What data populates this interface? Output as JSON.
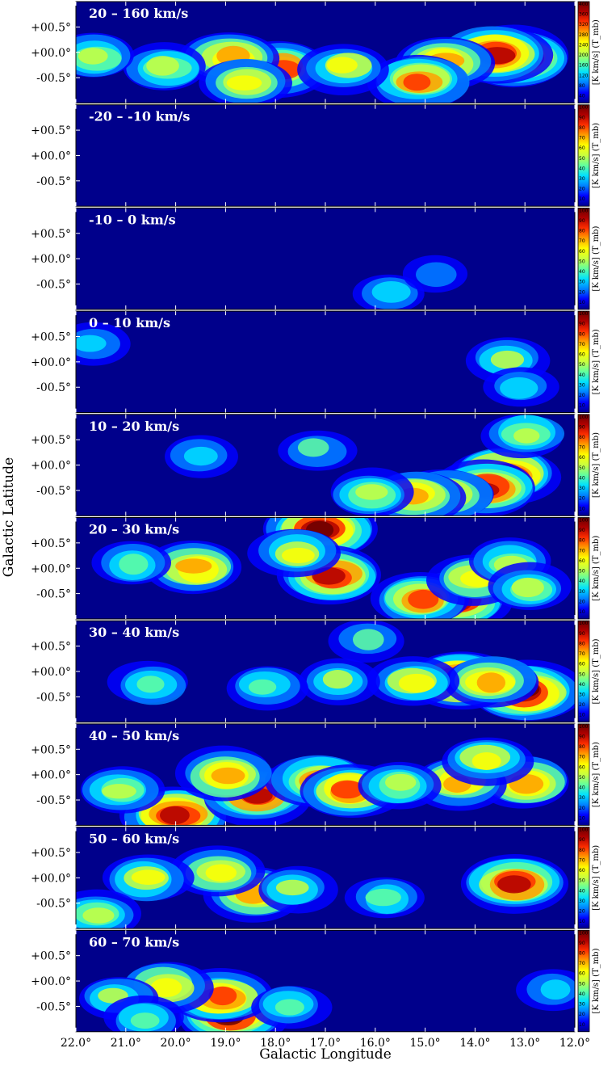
{
  "figure": {
    "ylabel": "Galactic Latitude",
    "xlabel": "Galactic Longitude",
    "colorbar_label": "[K km/s] (T_mb)",
    "colormap": [
      "#00008b",
      "#0000ff",
      "#0080ff",
      "#00e0ff",
      "#60ffa0",
      "#c8ff40",
      "#ffff00",
      "#ffa000",
      "#ff3000",
      "#b00000",
      "#6a0000"
    ],
    "background_color": "#00008b"
  },
  "chart_data": {
    "type": "heatmap",
    "x_ticks": [
      "22.0°",
      "21.0°",
      "20.0°",
      "19.0°",
      "18.0°",
      "17.0°",
      "16.0°",
      "15.0°",
      "14.0°",
      "13.0°",
      "12.0°"
    ],
    "x_tick_values": [
      22,
      21,
      20,
      19,
      18,
      17,
      16,
      15,
      14,
      13,
      12
    ],
    "xlim": [
      22.0,
      12.0
    ],
    "y_ticks": [
      "+00.5°",
      "+00.0°",
      "-00.5°"
    ],
    "y_tick_values": [
      0.5,
      0.0,
      -0.5
    ],
    "ylim": [
      -1.0,
      1.0
    ],
    "panels": [
      {
        "label": "20 – 160 km/s",
        "cbar_ticks": [
          "400",
          "360",
          "320",
          "280",
          "240",
          "200",
          "160",
          "120",
          "80",
          "40"
        ],
        "cbar_range": [
          0,
          400
        ],
        "clumps": [
          [
            13.2,
            -0.1,
            0.95
          ],
          [
            13.6,
            -0.05,
            0.9
          ],
          [
            14.6,
            -0.2,
            0.7
          ],
          [
            15.1,
            -0.55,
            0.75
          ],
          [
            17.9,
            -0.3,
            0.75
          ],
          [
            18.9,
            -0.1,
            0.7
          ],
          [
            18.6,
            -0.6,
            0.6
          ],
          [
            20.2,
            -0.3,
            0.5
          ],
          [
            21.6,
            -0.1,
            0.5
          ],
          [
            16.6,
            -0.3,
            0.55
          ]
        ]
      },
      {
        "label": "-20 – -10 km/s",
        "cbar_ticks": [
          "100",
          "90",
          "80",
          "70",
          "60",
          "50",
          "40",
          "30",
          "20",
          "10"
        ],
        "cbar_range": [
          0,
          100
        ],
        "clumps": []
      },
      {
        "label": "-10 – 0 km/s",
        "cbar_ticks": [
          "100",
          "90",
          "80",
          "70",
          "60",
          "50",
          "40",
          "30",
          "20",
          "10"
        ],
        "cbar_range": [
          0,
          100
        ],
        "clumps": [
          [
            15.7,
            -0.65,
            0.3
          ],
          [
            14.8,
            -0.3,
            0.2
          ]
        ]
      },
      {
        "label": "0 – 10 km/s",
        "cbar_ticks": [
          "100",
          "90",
          "80",
          "70",
          "60",
          "50",
          "40",
          "30",
          "20",
          "10"
        ],
        "cbar_range": [
          0,
          100
        ],
        "clumps": [
          [
            21.7,
            0.4,
            0.3
          ],
          [
            13.4,
            0.05,
            0.45
          ],
          [
            13.1,
            -0.5,
            0.3
          ]
        ]
      },
      {
        "label": "10 – 20 km/s",
        "cbar_ticks": [
          "100",
          "90",
          "80",
          "70",
          "60",
          "50",
          "40",
          "30",
          "20",
          "10"
        ],
        "cbar_range": [
          0,
          100
        ],
        "clumps": [
          [
            13.4,
            -0.2,
            0.9
          ],
          [
            13.8,
            -0.45,
            0.85
          ],
          [
            14.6,
            -0.6,
            0.7
          ],
          [
            15.2,
            -0.6,
            0.7
          ],
          [
            13.0,
            0.6,
            0.5
          ],
          [
            16.1,
            -0.55,
            0.5
          ],
          [
            17.2,
            0.3,
            0.35
          ],
          [
            19.5,
            0.2,
            0.3
          ]
        ]
      },
      {
        "label": "20 – 30 km/s",
        "cbar_ticks": [
          "100",
          "90",
          "80",
          "70",
          "60",
          "50",
          "40",
          "30",
          "20",
          "10"
        ],
        "cbar_range": [
          0,
          100
        ],
        "clumps": [
          [
            17.1,
            0.75,
            0.95
          ],
          [
            16.9,
            -0.15,
            0.85
          ],
          [
            14.4,
            -0.65,
            0.85
          ],
          [
            15.1,
            -0.6,
            0.75
          ],
          [
            19.6,
            0.0,
            0.7
          ],
          [
            17.6,
            0.3,
            0.55
          ],
          [
            14.0,
            -0.2,
            0.6
          ],
          [
            13.3,
            0.1,
            0.5
          ],
          [
            12.9,
            -0.4,
            0.5
          ],
          [
            20.9,
            0.1,
            0.4
          ]
        ]
      },
      {
        "label": "30 – 40 km/s",
        "cbar_ticks": [
          "100",
          "90",
          "80",
          "70",
          "60",
          "50",
          "40",
          "30",
          "20",
          "10"
        ],
        "cbar_range": [
          0,
          100
        ],
        "clumps": [
          [
            13.0,
            -0.4,
            0.95
          ],
          [
            14.3,
            -0.15,
            0.9
          ],
          [
            13.7,
            -0.2,
            0.7
          ],
          [
            15.2,
            -0.2,
            0.55
          ],
          [
            16.7,
            -0.2,
            0.45
          ],
          [
            18.2,
            -0.3,
            0.4
          ],
          [
            20.5,
            -0.25,
            0.4
          ],
          [
            16.2,
            0.6,
            0.35
          ]
        ]
      },
      {
        "label": "40 – 50 km/s",
        "cbar_ticks": [
          "100",
          "90",
          "80",
          "70",
          "60",
          "50",
          "40",
          "30",
          "20",
          "10"
        ],
        "cbar_range": [
          0,
          100
        ],
        "clumps": [
          [
            20.0,
            -0.8,
            0.9
          ],
          [
            18.4,
            -0.4,
            0.85
          ],
          [
            17.1,
            -0.1,
            0.75
          ],
          [
            16.5,
            -0.3,
            0.8
          ],
          [
            19.0,
            0.0,
            0.7
          ],
          [
            13.0,
            -0.15,
            0.7
          ],
          [
            14.3,
            -0.15,
            0.7
          ],
          [
            13.8,
            0.3,
            0.55
          ],
          [
            21.1,
            -0.3,
            0.5
          ],
          [
            15.5,
            -0.2,
            0.5
          ]
        ]
      },
      {
        "label": "50 – 60 km/s",
        "cbar_ticks": [
          "100",
          "90",
          "80",
          "70",
          "60",
          "50",
          "40",
          "30",
          "20",
          "10"
        ],
        "cbar_range": [
          0,
          100
        ],
        "clumps": [
          [
            13.2,
            -0.1,
            0.85
          ],
          [
            18.4,
            -0.3,
            0.7
          ],
          [
            19.1,
            0.1,
            0.6
          ],
          [
            20.6,
            0.0,
            0.55
          ],
          [
            21.6,
            -0.7,
            0.5
          ],
          [
            17.6,
            -0.2,
            0.45
          ],
          [
            15.8,
            -0.4,
            0.4
          ]
        ]
      },
      {
        "label": "60 – 70 km/s",
        "cbar_ticks": [
          "100",
          "90",
          "80",
          "70",
          "60",
          "50",
          "40",
          "30",
          "20",
          "10"
        ],
        "cbar_range": [
          0,
          100
        ],
        "clumps": [
          [
            18.9,
            -0.65,
            0.95
          ],
          [
            19.1,
            -0.3,
            0.8
          ],
          [
            20.2,
            -0.1,
            0.6
          ],
          [
            21.2,
            -0.3,
            0.45
          ],
          [
            17.7,
            -0.5,
            0.4
          ],
          [
            12.4,
            -0.2,
            0.3
          ],
          [
            20.6,
            -0.75,
            0.4
          ]
        ]
      }
    ]
  }
}
